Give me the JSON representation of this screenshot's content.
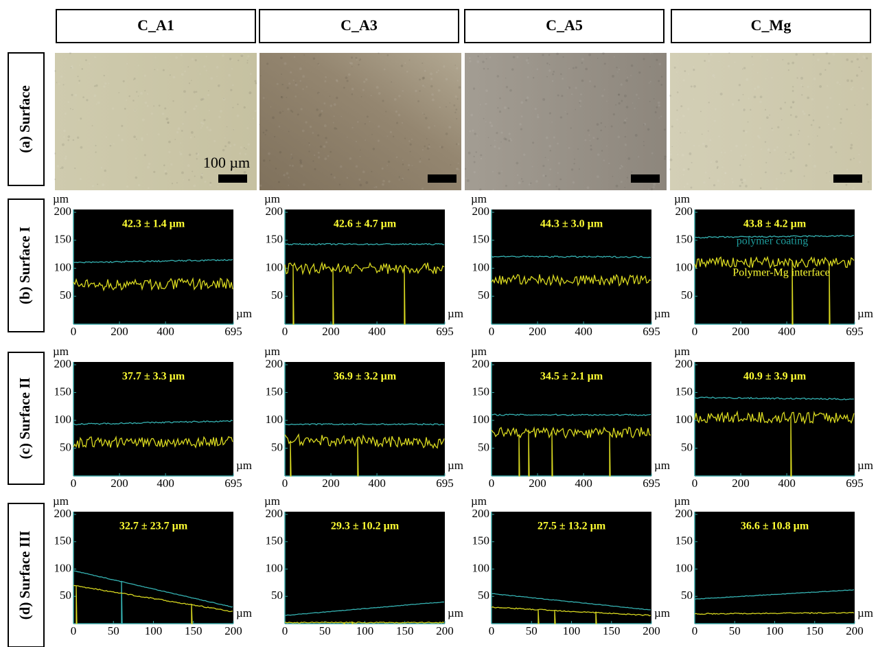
{
  "columns": [
    "C_A1",
    "C_A3",
    "C_A5",
    "C_Mg"
  ],
  "rows": [
    "(a) Surface",
    "(b) Surface I",
    "(c) Surface II",
    "(d) Surface III"
  ],
  "scale_bar_label": "100 µm",
  "axis_unit": "µm",
  "annotations": {
    "coating": "polymer coating",
    "interface": "Polymer-Mg interface"
  },
  "profiles": [
    {
      "xlim": [
        0,
        695
      ],
      "xticks": [
        0,
        200,
        400,
        695
      ],
      "ylim": [
        0,
        205
      ],
      "yticks": [
        50,
        100,
        150,
        200
      ],
      "plots": [
        {
          "thickness": "42.3 ± 1.4 µm",
          "coating": [
            110,
            115
          ],
          "interface": [
            70,
            72
          ]
        },
        {
          "thickness": "42.6 ± 4.7 µm",
          "coating": [
            143,
            143
          ],
          "interface": [
            100,
            100
          ]
        },
        {
          "thickness": "44.3 ± 3.0 µm",
          "coating": [
            121,
            120
          ],
          "interface": [
            80,
            78
          ]
        },
        {
          "thickness": "43.8 ± 4.2 µm",
          "coating": [
            155,
            158
          ],
          "interface": [
            110,
            110
          ]
        }
      ]
    },
    {
      "xlim": [
        0,
        695
      ],
      "xticks": [
        0,
        200,
        400,
        695
      ],
      "ylim": [
        0,
        205
      ],
      "yticks": [
        50,
        100,
        150,
        200
      ],
      "plots": [
        {
          "thickness": "37.7 ± 3.3 µm",
          "coating": [
            93,
            99
          ],
          "interface": [
            60,
            62
          ]
        },
        {
          "thickness": "36.9 ± 3.2 µm",
          "coating": [
            93,
            93
          ],
          "interface": [
            65,
            60
          ]
        },
        {
          "thickness": "34.5 ± 2.1 µm",
          "coating": [
            110,
            110
          ],
          "interface": [
            78,
            78
          ]
        },
        {
          "thickness": "40.9 ± 3.9 µm",
          "coating": [
            141,
            138
          ],
          "interface": [
            105,
            105
          ]
        }
      ]
    },
    {
      "xlim": [
        0,
        200
      ],
      "xticks": [
        0,
        50,
        100,
        150,
        200
      ],
      "ylim": [
        0,
        205
      ],
      "yticks": [
        50,
        100,
        150,
        200
      ],
      "plots": [
        {
          "thickness": "32.7 ± 23.7 µm",
          "coating": [
            97,
            30
          ],
          "interface": [
            70,
            22
          ]
        },
        {
          "thickness": "29.3 ± 10.2 µm",
          "coating": [
            15,
            40
          ],
          "interface": [
            2,
            2
          ]
        },
        {
          "thickness": "27.5 ± 13.2 µm",
          "coating": [
            55,
            25
          ],
          "interface": [
            30,
            15
          ]
        },
        {
          "thickness": "36.6 ± 10.8 µm",
          "coating": [
            45,
            62
          ],
          "interface": [
            18,
            20
          ]
        }
      ]
    }
  ]
}
